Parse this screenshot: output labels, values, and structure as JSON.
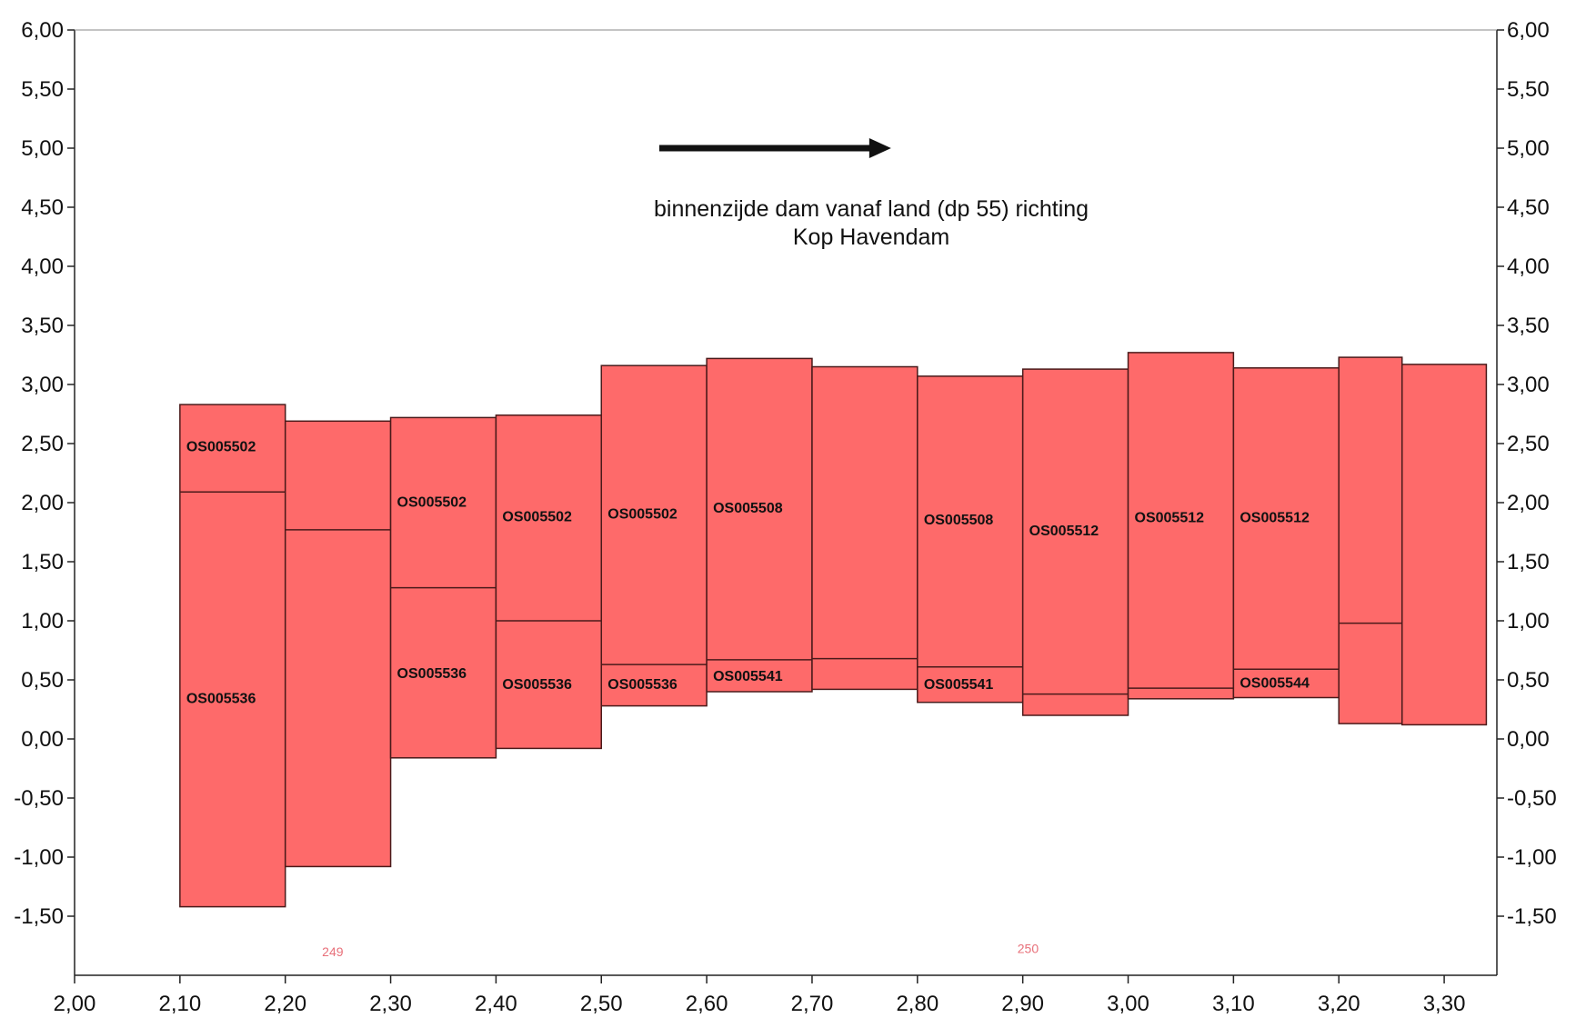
{
  "chart_data": {
    "type": "bar",
    "title_lines": [
      "binnenzijde dam vanaf land (dp 55) richting",
      "Kop Havendam"
    ],
    "xlabel": "",
    "ylabel": "",
    "xlim": [
      2.0,
      3.35
    ],
    "ylim": [
      -2.0,
      6.0
    ],
    "x_ticks": [
      {
        "value": 2.0,
        "label": "2,00"
      },
      {
        "value": 2.1,
        "label": "2,10"
      },
      {
        "value": 2.2,
        "label": "2,20"
      },
      {
        "value": 2.3,
        "label": "2,30"
      },
      {
        "value": 2.4,
        "label": "2,40"
      },
      {
        "value": 2.5,
        "label": "2,50"
      },
      {
        "value": 2.6,
        "label": "2,60"
      },
      {
        "value": 2.7,
        "label": "2,70"
      },
      {
        "value": 2.8,
        "label": "2,80"
      },
      {
        "value": 2.9,
        "label": "2,90"
      },
      {
        "value": 3.0,
        "label": "3,00"
      },
      {
        "value": 3.1,
        "label": "3,10"
      },
      {
        "value": 3.2,
        "label": "3,20"
      },
      {
        "value": 3.3,
        "label": "3,30"
      }
    ],
    "y_ticks": [
      {
        "value": 6.0,
        "label": "6,00"
      },
      {
        "value": 5.5,
        "label": "5,50"
      },
      {
        "value": 5.0,
        "label": "5,00"
      },
      {
        "value": 4.5,
        "label": "4,50"
      },
      {
        "value": 4.0,
        "label": "4,00"
      },
      {
        "value": 3.5,
        "label": "3,50"
      },
      {
        "value": 3.0,
        "label": "3,00"
      },
      {
        "value": 2.5,
        "label": "2,50"
      },
      {
        "value": 2.0,
        "label": "2,00"
      },
      {
        "value": 1.5,
        "label": "1,50"
      },
      {
        "value": 1.0,
        "label": "1,00"
      },
      {
        "value": 0.5,
        "label": "0,50"
      },
      {
        "value": 0.0,
        "label": "0,00"
      },
      {
        "value": -0.5,
        "label": "-0,50"
      },
      {
        "value": -1.0,
        "label": "-1,00"
      },
      {
        "value": -1.5,
        "label": "-1,50"
      }
    ],
    "grid": false,
    "bar_color": "#fe6a6a",
    "outline_color": "#4a1a1a",
    "bars": [
      {
        "x0": 2.1,
        "x1": 2.2,
        "top": 2.83,
        "bottom": -1.42,
        "divider": 2.09,
        "labels": [
          {
            "text": "OS005502",
            "y": 2.48
          },
          {
            "text": "OS005536",
            "y": 0.35
          }
        ]
      },
      {
        "x0": 2.2,
        "x1": 2.3,
        "top": 2.69,
        "bottom": -1.08,
        "divider": 1.77,
        "labels": []
      },
      {
        "x0": 2.3,
        "x1": 2.4,
        "top": 2.72,
        "bottom": -0.16,
        "divider": 1.28,
        "labels": [
          {
            "text": "OS005502",
            "y": 2.01
          },
          {
            "text": "OS005536",
            "y": 0.56
          }
        ]
      },
      {
        "x0": 2.4,
        "x1": 2.5,
        "top": 2.74,
        "bottom": -0.08,
        "divider": 1.0,
        "labels": [
          {
            "text": "OS005502",
            "y": 1.89
          },
          {
            "text": "OS005536",
            "y": 0.47
          }
        ]
      },
      {
        "x0": 2.5,
        "x1": 2.6,
        "top": 3.16,
        "bottom": 0.28,
        "divider": 0.63,
        "labels": [
          {
            "text": "OS005502",
            "y": 1.91
          },
          {
            "text": "OS005536",
            "y": 0.47
          }
        ]
      },
      {
        "x0": 2.6,
        "x1": 2.7,
        "top": 3.22,
        "bottom": 0.4,
        "divider": 0.67,
        "labels": [
          {
            "text": "OS005508",
            "y": 1.96
          },
          {
            "text": "OS005541",
            "y": 0.54
          }
        ]
      },
      {
        "x0": 2.7,
        "x1": 2.8,
        "top": 3.15,
        "bottom": 0.42,
        "divider": 0.68,
        "labels": []
      },
      {
        "x0": 2.8,
        "x1": 2.9,
        "top": 3.07,
        "bottom": 0.31,
        "divider": 0.61,
        "labels": [
          {
            "text": "OS005508",
            "y": 1.86
          },
          {
            "text": "OS005541",
            "y": 0.47
          }
        ]
      },
      {
        "x0": 2.9,
        "x1": 3.0,
        "top": 3.13,
        "bottom": 0.2,
        "divider": 0.38,
        "labels": [
          {
            "text": "OS005512",
            "y": 1.77
          }
        ]
      },
      {
        "x0": 3.0,
        "x1": 3.1,
        "top": 3.27,
        "bottom": 0.34,
        "divider": 0.43,
        "labels": [
          {
            "text": "OS005512",
            "y": 1.88
          }
        ]
      },
      {
        "x0": 3.1,
        "x1": 3.2,
        "top": 3.14,
        "bottom": 0.35,
        "divider": 0.59,
        "labels": [
          {
            "text": "OS005512",
            "y": 1.88
          },
          {
            "text": "OS005544",
            "y": 0.48
          }
        ]
      },
      {
        "x0": 3.2,
        "x1": 3.26,
        "top": 3.23,
        "bottom": 0.13,
        "divider": 0.98,
        "labels": []
      },
      {
        "x0": 3.26,
        "x1": 3.34,
        "top": 3.17,
        "bottom": 0.12,
        "divider": null,
        "labels": []
      }
    ],
    "markers": [
      {
        "text": "249",
        "x": 2.245,
        "y": -1.84
      },
      {
        "text": "250",
        "x": 2.905,
        "y": -1.81
      }
    ],
    "arrow": {
      "x_start": 2.555,
      "x_end": 2.775,
      "y": 5.0
    }
  }
}
